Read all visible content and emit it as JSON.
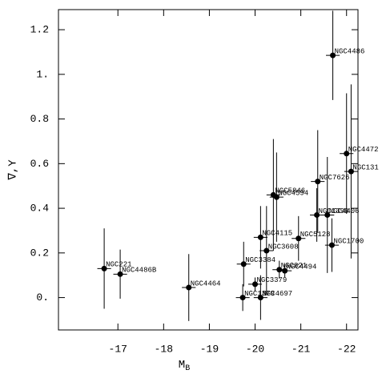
{
  "chart_data": {
    "type": "scatter",
    "xlabel": "M",
    "xlabel_sub": "B",
    "ylabel": "∇,Υ",
    "xlim": [
      -15.7,
      -22.25
    ],
    "ylim": [
      -0.145,
      1.29
    ],
    "xticks": [
      -17,
      -18,
      -19,
      -20,
      -21,
      -22
    ],
    "yticks": [
      {
        "value": 0,
        "label": "0."
      },
      0.2,
      0.4,
      0.6,
      0.8,
      {
        "value": 1,
        "label": "1."
      },
      1.2
    ],
    "color": "#000000",
    "labels": [
      "NGC221",
      "NGC4486B",
      "NGC4464",
      "NGC1379",
      "NGC4697",
      "NGC3379",
      "NGC3384",
      "NGC4115",
      "NGC3608",
      "NGC5846",
      "NGC4594",
      "NGC821",
      "NGC4494",
      "NGC5128",
      "NGC7626",
      "NGC1399",
      "NGC4406",
      "NGC1700",
      "NGC4486",
      "NGC4472",
      "NGC131"
    ],
    "x": [
      -16.7,
      -17.05,
      -18.55,
      -19.73,
      -20.12,
      -20.0,
      -19.75,
      -20.12,
      -20.25,
      -20.4,
      -20.47,
      -20.53,
      -20.65,
      -20.95,
      -21.37,
      -21.35,
      -21.58,
      -21.68,
      -21.7,
      -22.0,
      -22.1
    ],
    "y": [
      0.13,
      0.105,
      0.045,
      0.0,
      0.0,
      0.06,
      0.15,
      0.27,
      0.21,
      0.46,
      0.45,
      0.125,
      0.12,
      0.265,
      0.52,
      0.37,
      0.37,
      0.235,
      1.085,
      0.645,
      0.565
    ],
    "yerr": [
      0.18,
      0.11,
      0.15,
      0.06,
      0.1,
      0.03,
      0.1,
      0.14,
      0.2,
      0.25,
      0.2,
      0.04,
      0.03,
      0.1,
      0.23,
      0.12,
      0.26,
      0.12,
      0.2,
      0.27,
      0.39
    ],
    "xerr": [
      0.15,
      0.15,
      0.15,
      0.15,
      0.15,
      0.15,
      0.15,
      0.15,
      0.15,
      0.15,
      0.15,
      0.15,
      0.15,
      0.15,
      0.15,
      0.15,
      0.15,
      0.15,
      0.15,
      0.15,
      0.15
    ]
  }
}
